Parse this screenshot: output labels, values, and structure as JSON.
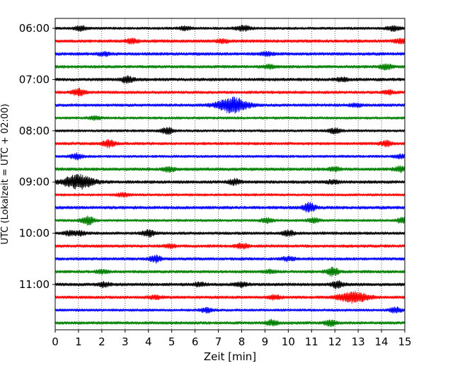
{
  "chart_data": {
    "type": "line",
    "title": "",
    "xlabel": "Zeit  [min]",
    "ylabel": "UTC (Lokalzeit = UTC + 02:00)",
    "xlim": [
      0,
      15
    ],
    "x_ticks": [
      "0",
      "1",
      "2",
      "3",
      "4",
      "5",
      "6",
      "7",
      "8",
      "9",
      "10",
      "11",
      "12",
      "13",
      "14",
      "15"
    ],
    "y_tick_labels": [
      "06:00",
      "07:00",
      "08:00",
      "09:00",
      "10:00",
      "11:00"
    ],
    "y_tick_rows": [
      0,
      4,
      8,
      12,
      16,
      20
    ],
    "grid": "vertical dotted at each minute",
    "trace_colors": [
      "#000000",
      "#ff0000",
      "#0000ff",
      "#008000"
    ],
    "traces": [
      {
        "label": "06:00",
        "color": "black",
        "noise": 0.25,
        "events": [
          {
            "t": 1.1,
            "amp": 0.45
          },
          {
            "t": 5.6,
            "amp": 0.35
          },
          {
            "t": 7.9,
            "amp": 0.3
          },
          {
            "t": 8.2,
            "amp": 0.35
          },
          {
            "t": 14.5,
            "amp": 0.45
          }
        ]
      },
      {
        "label": "06:15",
        "color": "red",
        "noise": 0.3,
        "events": [
          {
            "t": 3.3,
            "amp": 0.4
          },
          {
            "t": 7.2,
            "amp": 0.3
          },
          {
            "t": 14.8,
            "amp": 0.35
          }
        ]
      },
      {
        "label": "06:30",
        "color": "blue",
        "noise": 0.3,
        "events": [
          {
            "t": 2.1,
            "amp": 0.3
          },
          {
            "t": 9.1,
            "amp": 0.3
          }
        ]
      },
      {
        "label": "06:45",
        "color": "green",
        "noise": 0.28,
        "events": [
          {
            "t": 9.2,
            "amp": 0.3
          },
          {
            "t": 14.2,
            "amp": 0.45
          }
        ]
      },
      {
        "label": "07:00",
        "color": "black",
        "noise": 0.3,
        "events": [
          {
            "t": 3.1,
            "amp": 0.6
          },
          {
            "t": 12.3,
            "amp": 0.3
          }
        ]
      },
      {
        "label": "07:15",
        "color": "red",
        "noise": 0.28,
        "events": [
          {
            "t": 1.0,
            "amp": 0.65
          },
          {
            "t": 14.3,
            "amp": 0.3
          }
        ]
      },
      {
        "label": "07:30",
        "color": "blue",
        "noise": 0.28,
        "events": [
          {
            "t": 7.6,
            "amp": 1.4
          },
          {
            "t": 12.9,
            "amp": 0.3
          }
        ]
      },
      {
        "label": "07:45",
        "color": "green",
        "noise": 0.25,
        "events": [
          {
            "t": 1.7,
            "amp": 0.3
          }
        ]
      },
      {
        "label": "08:00",
        "color": "black",
        "noise": 0.25,
        "events": [
          {
            "t": 4.8,
            "amp": 0.55
          },
          {
            "t": 12.0,
            "amp": 0.45
          }
        ]
      },
      {
        "label": "08:15",
        "color": "red",
        "noise": 0.28,
        "events": [
          {
            "t": 2.3,
            "amp": 0.65
          },
          {
            "t": 14.2,
            "amp": 0.45
          }
        ]
      },
      {
        "label": "08:30",
        "color": "blue",
        "noise": 0.25,
        "events": [
          {
            "t": 0.9,
            "amp": 0.5
          },
          {
            "t": 14.8,
            "amp": 0.3
          }
        ]
      },
      {
        "label": "08:45",
        "color": "green",
        "noise": 0.3,
        "events": [
          {
            "t": 4.9,
            "amp": 0.4
          },
          {
            "t": 12.0,
            "amp": 0.3
          },
          {
            "t": 14.8,
            "amp": 0.45
          }
        ]
      },
      {
        "label": "09:00",
        "color": "black",
        "noise": 0.3,
        "events": [
          {
            "t": 1.0,
            "amp": 1.3
          },
          {
            "t": 7.7,
            "amp": 0.45
          },
          {
            "t": 11.9,
            "amp": 0.3
          }
        ]
      },
      {
        "label": "09:15",
        "color": "red",
        "noise": 0.25,
        "events": [
          {
            "t": 2.9,
            "amp": 0.3
          }
        ]
      },
      {
        "label": "09:30",
        "color": "blue",
        "noise": 0.3,
        "events": [
          {
            "t": 10.9,
            "amp": 0.85
          }
        ]
      },
      {
        "label": "09:45",
        "color": "green",
        "noise": 0.25,
        "events": [
          {
            "t": 1.4,
            "amp": 0.85
          },
          {
            "t": 9.1,
            "amp": 0.4
          },
          {
            "t": 11.1,
            "amp": 0.4
          },
          {
            "t": 14.9,
            "amp": 0.45
          }
        ]
      },
      {
        "label": "10:00",
        "color": "black",
        "noise": 0.28,
        "events": [
          {
            "t": 0.6,
            "amp": 0.35
          },
          {
            "t": 1.1,
            "amp": 0.35
          },
          {
            "t": 4.0,
            "amp": 0.6
          },
          {
            "t": 10.0,
            "amp": 0.5
          }
        ]
      },
      {
        "label": "10:15",
        "color": "red",
        "noise": 0.28,
        "events": [
          {
            "t": 4.9,
            "amp": 0.3
          },
          {
            "t": 8.0,
            "amp": 0.45
          }
        ]
      },
      {
        "label": "10:30",
        "color": "blue",
        "noise": 0.28,
        "events": [
          {
            "t": 4.3,
            "amp": 0.6
          },
          {
            "t": 10.0,
            "amp": 0.35
          }
        ]
      },
      {
        "label": "10:45",
        "color": "green",
        "noise": 0.28,
        "events": [
          {
            "t": 2.0,
            "amp": 0.3
          },
          {
            "t": 9.2,
            "amp": 0.3
          },
          {
            "t": 11.9,
            "amp": 0.75
          }
        ]
      },
      {
        "label": "11:00",
        "color": "black",
        "noise": 0.3,
        "events": [
          {
            "t": 2.1,
            "amp": 0.4
          },
          {
            "t": 6.2,
            "amp": 0.35
          },
          {
            "t": 8.0,
            "amp": 0.35
          },
          {
            "t": 12.1,
            "amp": 0.6
          }
        ]
      },
      {
        "label": "11:15",
        "color": "red",
        "noise": 0.28,
        "events": [
          {
            "t": 4.3,
            "amp": 0.3
          },
          {
            "t": 9.4,
            "amp": 0.35
          },
          {
            "t": 12.8,
            "amp": 0.95
          }
        ]
      },
      {
        "label": "11:30",
        "color": "blue",
        "noise": 0.25,
        "events": [
          {
            "t": 6.5,
            "amp": 0.4
          },
          {
            "t": 14.6,
            "amp": 0.5
          }
        ]
      },
      {
        "label": "11:45",
        "color": "green",
        "noise": 0.28,
        "events": [
          {
            "t": 9.3,
            "amp": 0.5
          },
          {
            "t": 11.8,
            "amp": 0.5
          }
        ]
      }
    ]
  }
}
